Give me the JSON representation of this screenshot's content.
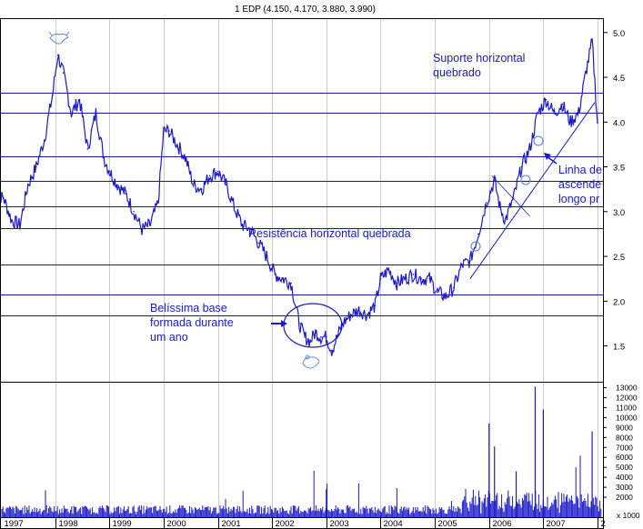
{
  "header": {
    "title": "1 EDP (4.150, 4.170, 3.880, 3.990)"
  },
  "colors": {
    "series": "#1a1acc",
    "horizontal_lines": "#1a1a99",
    "grid": "#cccccc",
    "axis": "#000000",
    "annotation": "#1a1acc"
  },
  "chart_data": {
    "type": "line",
    "title": "1 EDP (4.150, 4.170, 3.880, 3.990)",
    "x_tick_labels": [
      "1997",
      "1998",
      "1999",
      "2000",
      "2001",
      "2002",
      "2003",
      "2004",
      "2005",
      "2006",
      "2007",
      "2"
    ],
    "y_price_ticks": [
      1.5,
      2.0,
      2.5,
      3.0,
      3.5,
      4.0,
      4.5,
      5.0
    ],
    "y_price_tick_labels": [
      "1.5",
      "2.0",
      "2.5",
      "3.0",
      "3.5",
      "4.0",
      "4.5",
      "5.0"
    ],
    "ylim_price": [
      1.1,
      5.15
    ],
    "y_volume_ticks": [
      2000,
      3000,
      4000,
      5000,
      6000,
      7000,
      8000,
      9000,
      10000,
      11000,
      12000,
      13000
    ],
    "y_volume_tick_labels": [
      "2000",
      "3000",
      "4000",
      "5000",
      "6000",
      "7000",
      "8000",
      "9000",
      "10000",
      "11000",
      "12000",
      "13000"
    ],
    "volume_unit_label": "x 1000",
    "ylim_volume": [
      0,
      13500
    ],
    "grid": true,
    "series": [
      {
        "values_time": [
          1996.9,
          1997.05,
          1997.2,
          1997.35,
          1997.5,
          1997.65,
          1997.8,
          1997.95,
          1998.05,
          1998.15,
          1998.3,
          1998.45,
          1998.6,
          1998.75,
          1998.9,
          1999.0,
          1999.15,
          1999.3,
          1999.45,
          1999.6,
          1999.75,
          1999.9,
          2000.0,
          2000.1,
          2000.25,
          2000.4,
          2000.55,
          2000.7,
          2000.85,
          2001.0,
          2001.15,
          2001.3,
          2001.45,
          2001.6,
          2001.75,
          2001.9,
          2002.05,
          2002.2,
          2002.35,
          2002.5,
          2002.6,
          2002.7,
          2002.8,
          2002.9,
          2003.0,
          2003.1,
          2003.2,
          2003.3,
          2003.45,
          2003.6,
          2003.75,
          2003.9,
          2004.0,
          2004.15,
          2004.3,
          2004.45,
          2004.6,
          2004.75,
          2004.9,
          2005.05,
          2005.2,
          2005.35,
          2005.5,
          2005.65,
          2005.8,
          2005.95,
          2006.1,
          2006.2,
          2006.3,
          2006.45,
          2006.6,
          2006.75,
          2006.9,
          2007.05,
          2007.2,
          2007.35,
          2007.5,
          2007.65,
          2007.8,
          2007.9,
          2008.0
        ],
        "values": [
          3.2,
          3.15,
          2.9,
          2.85,
          3.3,
          3.5,
          3.8,
          4.3,
          4.75,
          4.55,
          4.1,
          4.25,
          3.7,
          4.1,
          3.6,
          3.45,
          3.3,
          3.2,
          3.0,
          2.8,
          2.85,
          3.1,
          3.9,
          3.9,
          3.75,
          3.6,
          3.3,
          3.25,
          3.4,
          3.45,
          3.3,
          3.05,
          2.85,
          2.8,
          2.65,
          2.5,
          2.3,
          2.25,
          2.2,
          1.75,
          1.6,
          1.55,
          1.65,
          1.6,
          1.6,
          1.45,
          1.6,
          1.75,
          1.85,
          1.9,
          1.85,
          1.95,
          2.25,
          2.35,
          2.2,
          2.25,
          2.3,
          2.25,
          2.25,
          2.1,
          2.05,
          2.15,
          2.4,
          2.45,
          2.75,
          3.1,
          3.35,
          3.05,
          2.9,
          3.15,
          3.5,
          3.7,
          4.1,
          4.25,
          4.1,
          4.2,
          4.0,
          4.1,
          4.6,
          4.9,
          3.99
        ]
      }
    ],
    "horizontal_levels": [
      4.33,
      4.1,
      3.62,
      3.34,
      3.06,
      2.82,
      2.41,
      2.07,
      1.84
    ],
    "annotations": [
      {
        "lines": [
          "Suporte horizontal",
          "quebrado"
        ]
      },
      {
        "lines": [
          "Resistência horizontal quebrada"
        ]
      },
      {
        "lines": [
          "Belíssima base",
          "formada durante",
          "um ano"
        ]
      },
      {
        "lines": [
          "Linha de",
          "ascende",
          "longo pr"
        ]
      }
    ]
  }
}
